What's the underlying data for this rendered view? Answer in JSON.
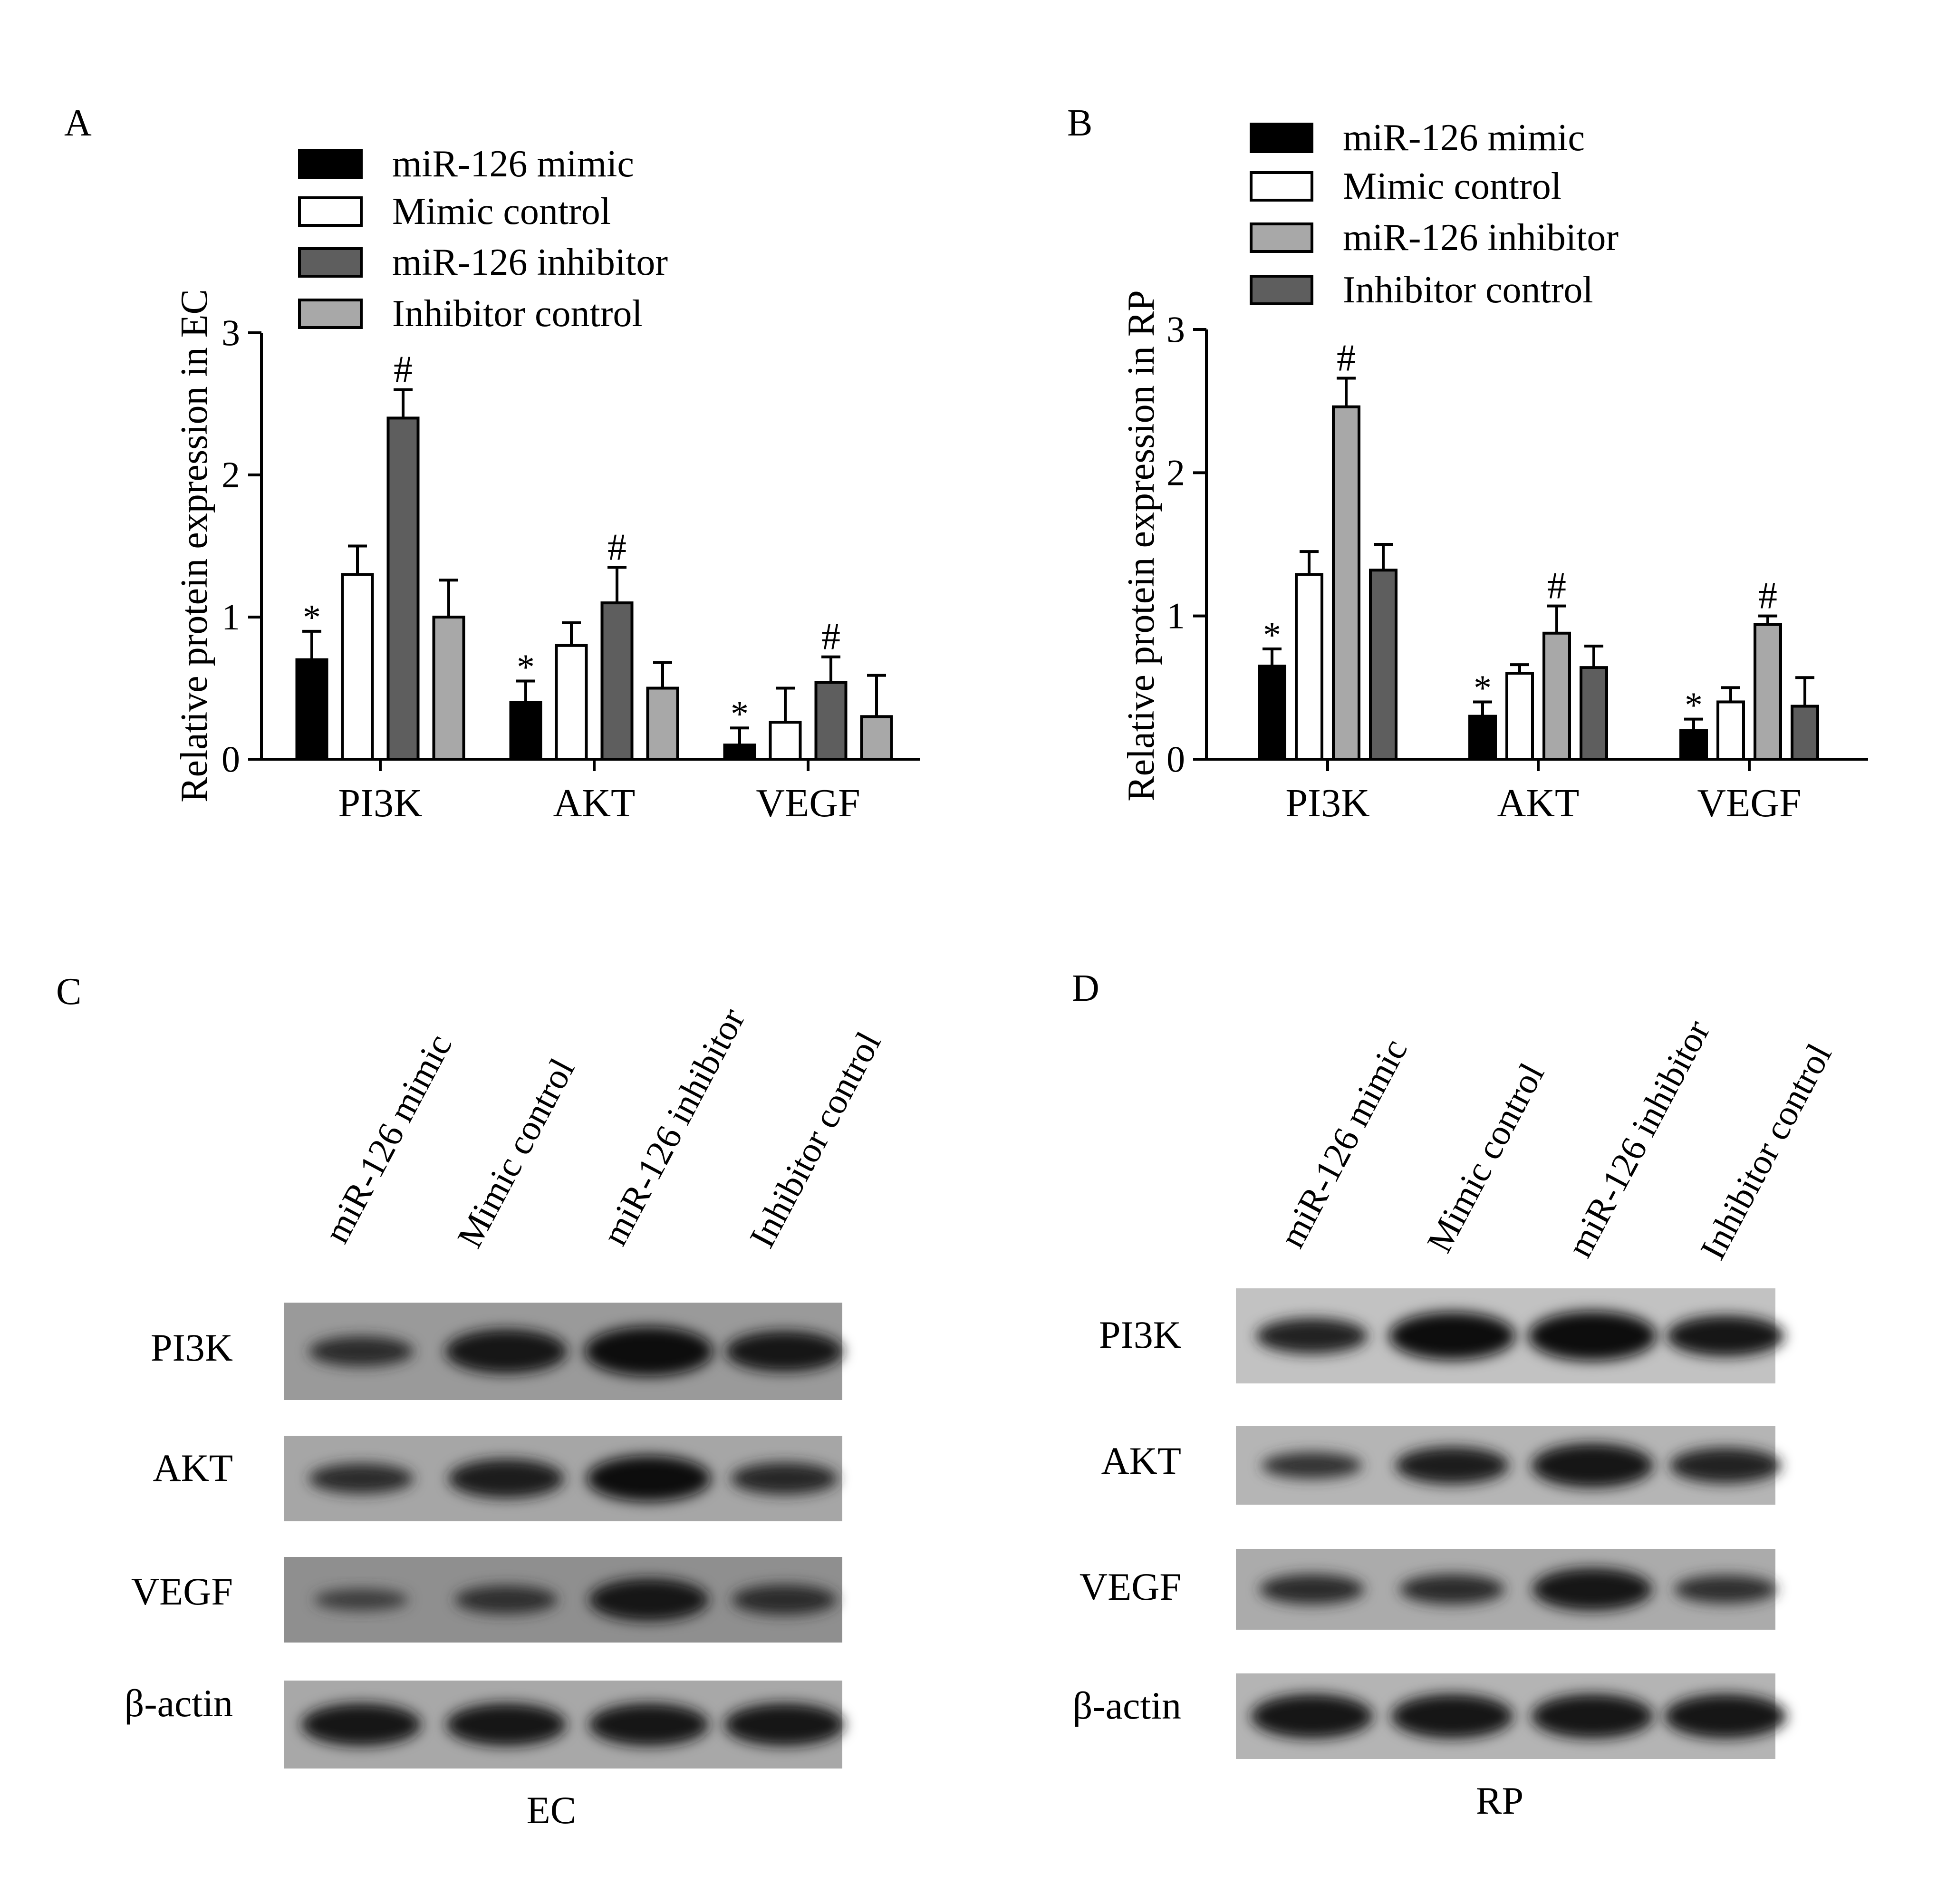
{
  "panels": {
    "A": {
      "letter": "A"
    },
    "B": {
      "letter": "B"
    },
    "C": {
      "letter": "C",
      "caption": "EC"
    },
    "D": {
      "letter": "D",
      "caption": "RP"
    }
  },
  "blot_lanes": [
    "miR-126 mimic",
    "Mimic control",
    "miR-126 inhibitor",
    "Inhibitor control"
  ],
  "blot_rows": [
    "PI3K",
    "AKT",
    "VEGF",
    "β-actin"
  ],
  "blot_intensity": {
    "C": [
      [
        0.45,
        0.85,
        1.0,
        0.75
      ],
      [
        0.45,
        0.7,
        0.9,
        0.5
      ],
      [
        0.2,
        0.4,
        0.8,
        0.45
      ],
      [
        0.8,
        0.8,
        0.8,
        0.8
      ]
    ],
    "D": [
      [
        0.6,
        0.95,
        1.0,
        0.75
      ],
      [
        0.35,
        0.65,
        0.85,
        0.6
      ],
      [
        0.45,
        0.45,
        0.8,
        0.4
      ],
      [
        0.85,
        0.85,
        0.85,
        0.85
      ]
    ]
  },
  "chart_data": [
    {
      "type": "bar",
      "panel": "A",
      "ylabel": "Relative protein expression in EC",
      "xlabel": "",
      "ylim": [
        0,
        3
      ],
      "yticks": [
        0,
        1,
        2,
        3
      ],
      "categories": [
        "PI3K",
        "AKT",
        "VEGF"
      ],
      "legend_position": "top",
      "series": [
        {
          "name": "miR-126 mimic",
          "color": "#000000",
          "values": [
            0.7,
            0.4,
            0.1
          ],
          "errors": [
            0.2,
            0.15,
            0.12
          ],
          "marks": [
            "*",
            "*",
            "*"
          ]
        },
        {
          "name": "Mimic control",
          "color": "#ffffff",
          "values": [
            1.3,
            0.8,
            0.26
          ],
          "errors": [
            0.2,
            0.16,
            0.24
          ],
          "marks": [
            "",
            "",
            ""
          ]
        },
        {
          "name": "miR-126 inhibitor",
          "color": "#5e5e5e",
          "values": [
            2.4,
            1.1,
            0.54
          ],
          "errors": [
            0.2,
            0.25,
            0.18
          ],
          "marks": [
            "#",
            "#",
            "#"
          ]
        },
        {
          "name": "Inhibitor control",
          "color": "#a8a8a8",
          "values": [
            1.0,
            0.5,
            0.3
          ],
          "errors": [
            0.26,
            0.18,
            0.29
          ],
          "marks": [
            "",
            "",
            ""
          ]
        }
      ]
    },
    {
      "type": "bar",
      "panel": "B",
      "ylabel": "Relative protein expression in RP",
      "xlabel": "",
      "ylim": [
        0,
        3
      ],
      "yticks": [
        0,
        1,
        2,
        3
      ],
      "categories": [
        "PI3K",
        "AKT",
        "VEGF"
      ],
      "legend_position": "top",
      "series": [
        {
          "name": "miR-126 mimic",
          "color": "#000000",
          "values": [
            0.65,
            0.3,
            0.2
          ],
          "errors": [
            0.12,
            0.1,
            0.08
          ],
          "marks": [
            "*",
            "*",
            "*"
          ]
        },
        {
          "name": "Mimic control",
          "color": "#ffffff",
          "values": [
            1.29,
            0.6,
            0.4
          ],
          "errors": [
            0.16,
            0.06,
            0.1
          ],
          "marks": [
            "",
            "",
            ""
          ]
        },
        {
          "name": "miR-126 inhibitor",
          "color": "#a8a8a8",
          "values": [
            2.46,
            0.88,
            0.94
          ],
          "errors": [
            0.2,
            0.19,
            0.06
          ],
          "marks": [
            "#",
            "#",
            "#"
          ]
        },
        {
          "name": "Inhibitor control",
          "color": "#5e5e5e",
          "values": [
            1.32,
            0.64,
            0.37
          ],
          "errors": [
            0.18,
            0.15,
            0.2
          ],
          "marks": [
            "",
            "",
            ""
          ]
        }
      ]
    }
  ]
}
